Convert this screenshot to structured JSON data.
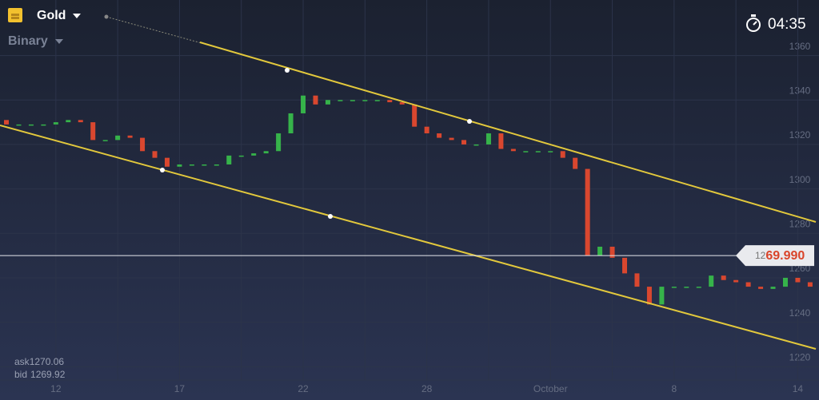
{
  "header": {
    "asset": "Gold",
    "mode": "Binary",
    "timer": "04:35"
  },
  "quote": {
    "ask_label": "ask",
    "ask": "1270.06",
    "bid_label": "bid",
    "bid": "1269.92",
    "price_prefix": "12",
    "price_suffix": "69.990"
  },
  "chart_data": {
    "type": "candlestick",
    "categories": [
      null,
      null,
      null,
      null,
      "12",
      null,
      null,
      null,
      null,
      null,
      null,
      null,
      null,
      null,
      "17",
      null,
      null,
      null,
      null,
      null,
      null,
      null,
      null,
      null,
      "22",
      null,
      null,
      null,
      null,
      null,
      null,
      null,
      null,
      null,
      "28",
      null,
      null,
      null,
      null,
      null,
      null,
      null,
      null,
      null,
      "October",
      null,
      null,
      null,
      null,
      null,
      null,
      null,
      null,
      null,
      "8",
      null,
      null,
      null,
      null,
      null,
      null,
      null,
      null,
      null,
      "14",
      null
    ],
    "open": [
      1331,
      1329,
      1329,
      1329,
      1329,
      1330,
      1331,
      1330,
      1322,
      1322,
      1324,
      1323,
      1317,
      1314,
      1310,
      1311,
      1311,
      1311,
      1311,
      1315,
      1315,
      1316,
      1317,
      1325,
      1334,
      1342,
      1338,
      1340,
      1340,
      1340,
      1340,
      1340,
      1339,
      1338,
      1328,
      1325,
      1323,
      1322,
      1320,
      1320,
      1325,
      1318,
      1317,
      1317,
      1317,
      1317,
      1314,
      1309,
      1270,
      1274,
      1269,
      1262,
      1256,
      1248,
      1256,
      1256,
      1256,
      1256,
      1261,
      1259,
      1258,
      1256,
      1255,
      1256,
      1260,
      1258
    ],
    "close": [
      1329,
      1329,
      1329,
      1329,
      1330,
      1331,
      1330,
      1322,
      1322,
      1324,
      1323,
      1317,
      1314,
      1310,
      1311,
      1311,
      1311,
      1311,
      1315,
      1315,
      1316,
      1317,
      1325,
      1334,
      1342,
      1338,
      1340,
      1340,
      1340,
      1340,
      1340,
      1339,
      1338,
      1328,
      1325,
      1323,
      1322,
      1320,
      1320,
      1325,
      1318,
      1317,
      1317,
      1317,
      1317,
      1314,
      1309,
      1270,
      1274,
      1269,
      1262,
      1256,
      1248,
      1256,
      1256,
      1256,
      1256,
      1261,
      1259,
      1258,
      1256,
      1255,
      1256,
      1260,
      1258,
      1256
    ],
    "up_color": "#36b34a",
    "down_color": "#d9472f",
    "ylim": [
      1214,
      1385
    ],
    "yticks": [
      1220,
      1240,
      1260,
      1280,
      1300,
      1320,
      1340,
      1360
    ],
    "grid": true,
    "current_price": 1269.99
  }
}
